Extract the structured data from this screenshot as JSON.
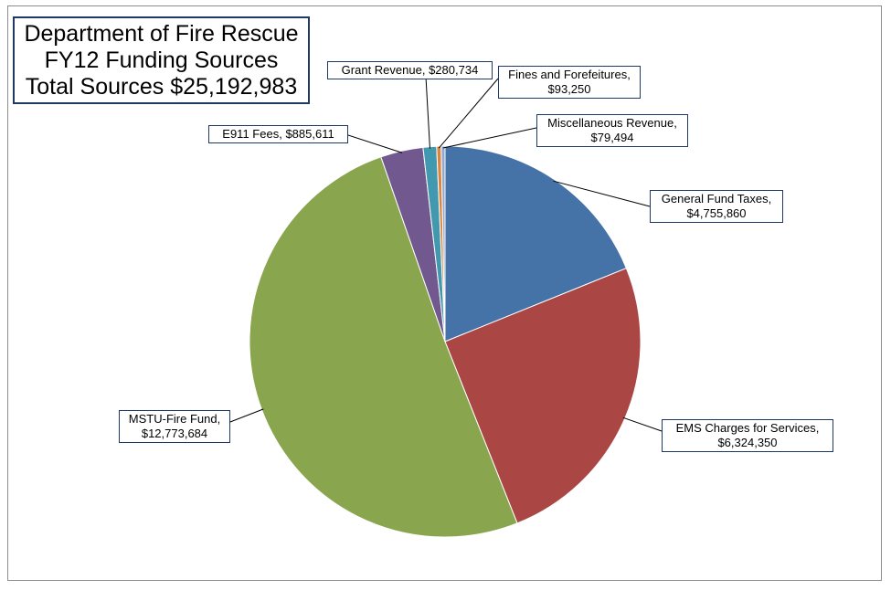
{
  "chart_data": {
    "type": "pie",
    "title": [
      "Department of Fire Rescue",
      "FY12 Funding Sources",
      "Total Sources $25,192,983"
    ],
    "slices": [
      {
        "name": "General Fund Taxes,",
        "display": "$4,755,860",
        "value": 4755860,
        "color": "#4572a7"
      },
      {
        "name": "EMS Charges for Services,",
        "display": "$6,324,350",
        "value": 6324350,
        "color": "#aa4643"
      },
      {
        "name": "MSTU-Fire Fund,",
        "display": "$12,773,684",
        "value": 12773684,
        "color": "#89a54e"
      },
      {
        "name": "E911 Fees,",
        "display": "$885,611",
        "value": 885611,
        "color": "#71588f"
      },
      {
        "name": "Grant Revenue,",
        "display": "$280,734",
        "value": 280734,
        "color": "#4198af"
      },
      {
        "name": "Fines and Forefeitures,",
        "display": "$93,250",
        "value": 93250,
        "color": "#db843d"
      },
      {
        "name": "Miscellaneous Revenue,",
        "display": "$79,494",
        "value": 79494,
        "color": "#93a9cf"
      }
    ],
    "start_angle_deg": 0,
    "direction": "clockwise"
  }
}
